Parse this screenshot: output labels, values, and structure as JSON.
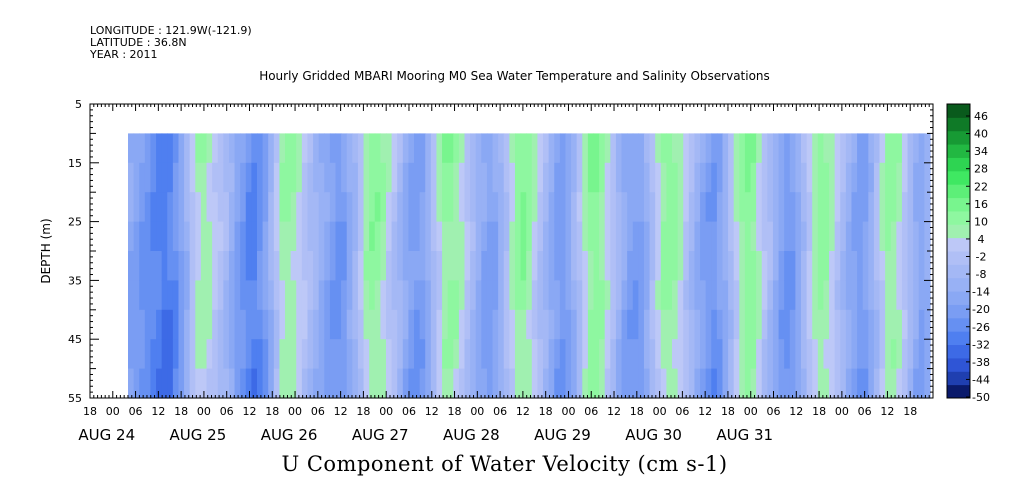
{
  "header": {
    "longitude": "LONGITUDE : 121.9W(-121.9)",
    "latitude": "LATITUDE : 36.8N",
    "year": "YEAR : 2011"
  },
  "colors": {
    "colorbar": [
      "#0a1a6b",
      "#1f3fb0",
      "#2f55d6",
      "#3d6ae6",
      "#4f7ff0",
      "#6690f2",
      "#7a9df3",
      "#8aa8f4",
      "#98b1f5",
      "#a4b8f5",
      "#b0bff6",
      "#bdc8f7",
      "#a0f0b0",
      "#8ef7a0",
      "#78f58e",
      "#5def78",
      "#3fe862",
      "#2ed452",
      "#22b842",
      "#179a34",
      "#0f7a27",
      "#095a1c"
    ]
  },
  "chart_data": {
    "type": "heatmap",
    "title": "Hourly Gridded MBARI Mooring M0 Sea Water Temperature and Salinity Observations",
    "xlabel": "U Component of Water Velocity (cm s-1)",
    "ylabel": "DEPTH (m)",
    "y_ticks": [
      5,
      15,
      25,
      35,
      45,
      55
    ],
    "ylim": [
      55,
      5
    ],
    "x_hour_ticks": [
      "18",
      "00",
      "06",
      "12",
      "18",
      "00",
      "06",
      "12",
      "18",
      "00",
      "06",
      "12",
      "18",
      "00",
      "06",
      "12",
      "18",
      "00",
      "06",
      "12",
      "18",
      "00",
      "06",
      "12",
      "18",
      "00",
      "06",
      "12",
      "18",
      "00",
      "06",
      "12",
      "18",
      "00",
      "06",
      "12",
      "18"
    ],
    "x_day_labels": [
      "AUG 24",
      "AUG 25",
      "AUG 26",
      "AUG 27",
      "AUG 28",
      "AUG 29",
      "AUG 30",
      "AUG 31"
    ],
    "data_depth_range": [
      10,
      55
    ],
    "colorbar_ticks": [
      "46",
      "40",
      "34",
      "28",
      "22",
      "16",
      "10",
      "4",
      "-2",
      "-8",
      "-14",
      "-20",
      "-26",
      "-32",
      "-38",
      "-44",
      "-50"
    ],
    "colorbar_range": [
      -50,
      52
    ],
    "column_values": [
      -14,
      -16,
      -20,
      -22,
      -24,
      -26,
      -28,
      -26,
      -22,
      -16,
      -8,
      2,
      8,
      10,
      8,
      4,
      0,
      -4,
      -10,
      -16,
      -20,
      -24,
      -26,
      -22,
      -16,
      -8,
      2,
      10,
      12,
      10,
      6,
      2,
      -2,
      -6,
      -10,
      -14,
      -18,
      -20,
      -18,
      -12,
      -6,
      2,
      10,
      14,
      14,
      10,
      4,
      0,
      -6,
      -12,
      -16,
      -18,
      -16,
      -10,
      -2,
      6,
      12,
      14,
      12,
      8,
      2,
      -4,
      -10,
      -14,
      -16,
      -14,
      -8,
      0,
      8,
      14,
      16,
      12,
      6,
      0,
      -6,
      -12,
      -16,
      -18,
      -14,
      -8,
      0,
      8,
      14,
      16,
      12,
      6,
      0,
      -6,
      -12,
      -16,
      -18,
      -16,
      -10,
      -2,
      6,
      12,
      14,
      12,
      8,
      2,
      -4,
      -10,
      -14,
      -18,
      -20,
      -16,
      -10,
      -2,
      6,
      12,
      16,
      14,
      8,
      2,
      -4,
      -10,
      -16,
      -20,
      -18,
      -12,
      -4,
      4,
      10,
      14,
      12,
      8,
      2,
      -4,
      -10,
      -14,
      -18,
      -16,
      -10,
      -2,
      6,
      12,
      12,
      8,
      2,
      -4,
      -10,
      -14,
      -10
    ]
  }
}
